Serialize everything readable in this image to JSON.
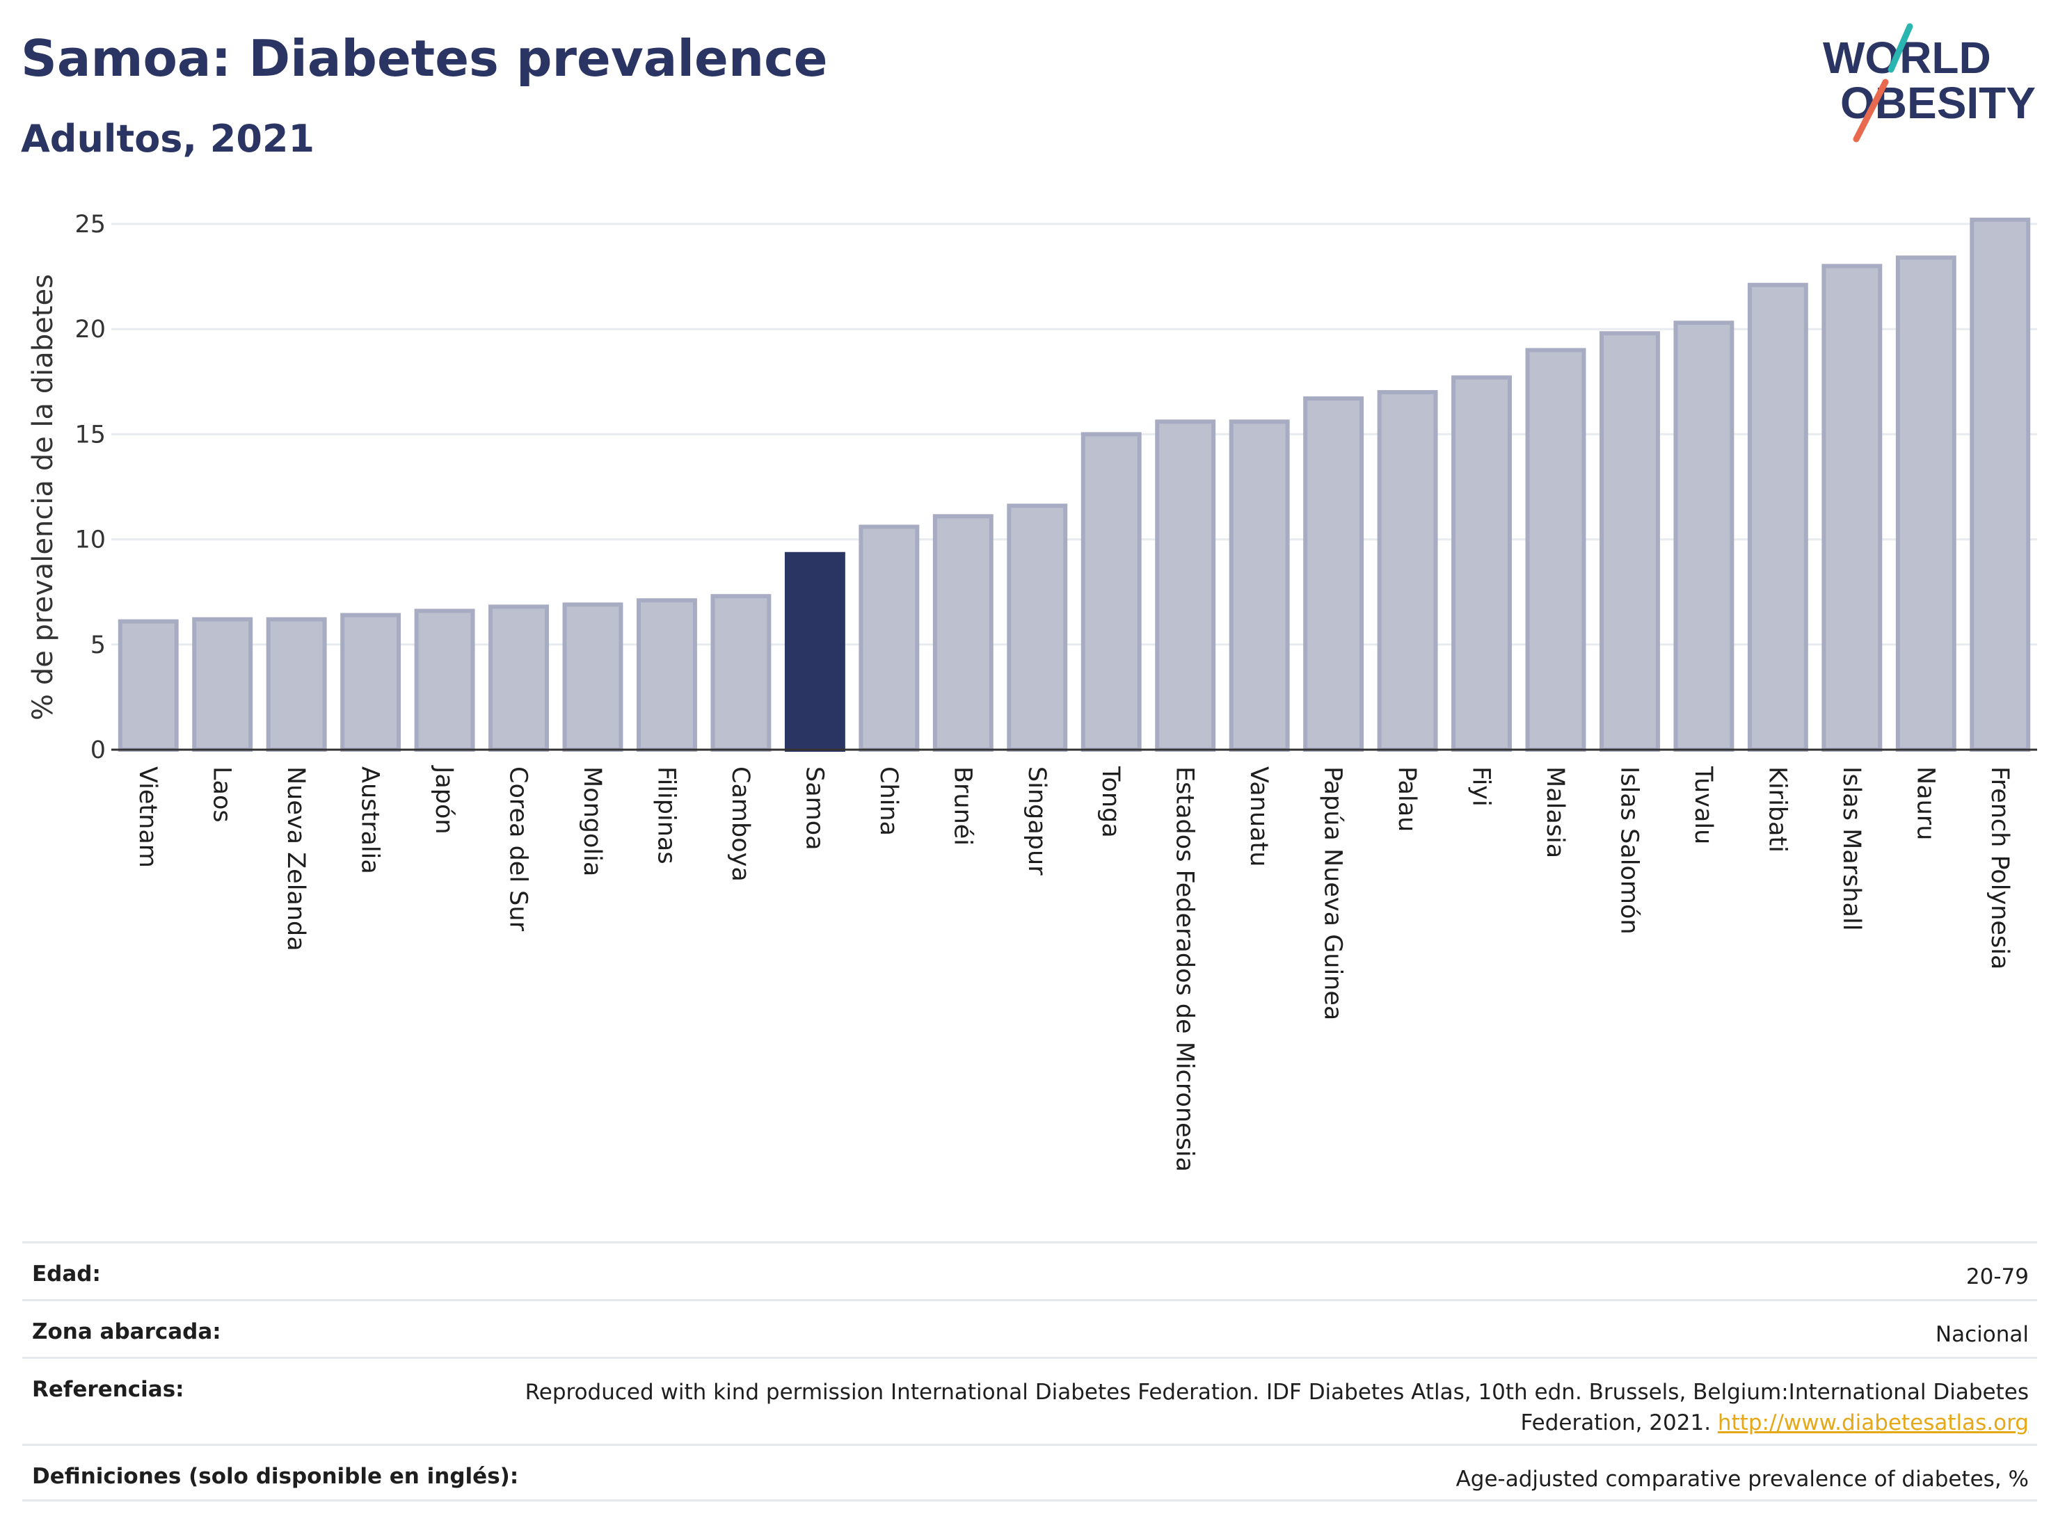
{
  "header": {
    "title": "Samoa: Diabetes prevalence",
    "subtitle": "Adultos, 2021"
  },
  "logo": {
    "line1": "WORLD",
    "line2": "OBESITY",
    "colors": {
      "text": "#2b3563",
      "slash_top": "#2bb5b0",
      "slash_bottom": "#e8694e"
    }
  },
  "colors": {
    "bar": "#bcc0cf",
    "bar_border": "#a8acc3",
    "highlight": "#2b3563",
    "grid": "#e8ebf0",
    "axis": "#333333"
  },
  "chart_data": {
    "type": "bar",
    "title": "Samoa: Diabetes prevalence",
    "subtitle": "Adultos, 2021",
    "xlabel": "",
    "ylabel": "% de prevalencia de la diabetes",
    "ylim": [
      0,
      25
    ],
    "yticks": [
      0,
      5,
      10,
      15,
      20,
      25
    ],
    "grid": true,
    "highlight": "Samoa",
    "categories": [
      "Vietnam",
      "Laos",
      "Nueva Zelanda",
      "Australia",
      "Japón",
      "Corea del Sur",
      "Mongolia",
      "Filipinas",
      "Camboya",
      "Samoa",
      "China",
      "Brunéi",
      "Singapur",
      "Tonga",
      "Estados Federados de Micronesia",
      "Vanuatu",
      "Papúa Nueva Guinea",
      "Palau",
      "Fiyi",
      "Malasia",
      "Islas Salomón",
      "Tuvalu",
      "Kiribati",
      "Islas Marshall",
      "Nauru",
      "French Polynesia"
    ],
    "values": [
      6.1,
      6.2,
      6.2,
      6.4,
      6.6,
      6.8,
      6.9,
      7.1,
      7.3,
      9.3,
      10.6,
      11.1,
      11.6,
      15.0,
      15.6,
      15.6,
      16.7,
      17.0,
      17.7,
      19.0,
      19.8,
      20.3,
      22.1,
      23.0,
      23.4,
      25.2
    ]
  },
  "details": {
    "age_label": "Edad:",
    "age_value": "20-79",
    "area_label": "Zona abarcada:",
    "area_value": "Nacional",
    "refs_label": "Referencias:",
    "refs_value": "Reproduced with kind permission International Diabetes Federation.  IDF Diabetes Atlas, 10th edn. Brussels, Belgium:International Diabetes Federation, 2021.",
    "refs_link": "http://www.diabetesatlas.org",
    "defs_label": "Definiciones (solo disponible en inglés):",
    "defs_value": "Age-adjusted comparative prevalence of diabetes, %"
  }
}
